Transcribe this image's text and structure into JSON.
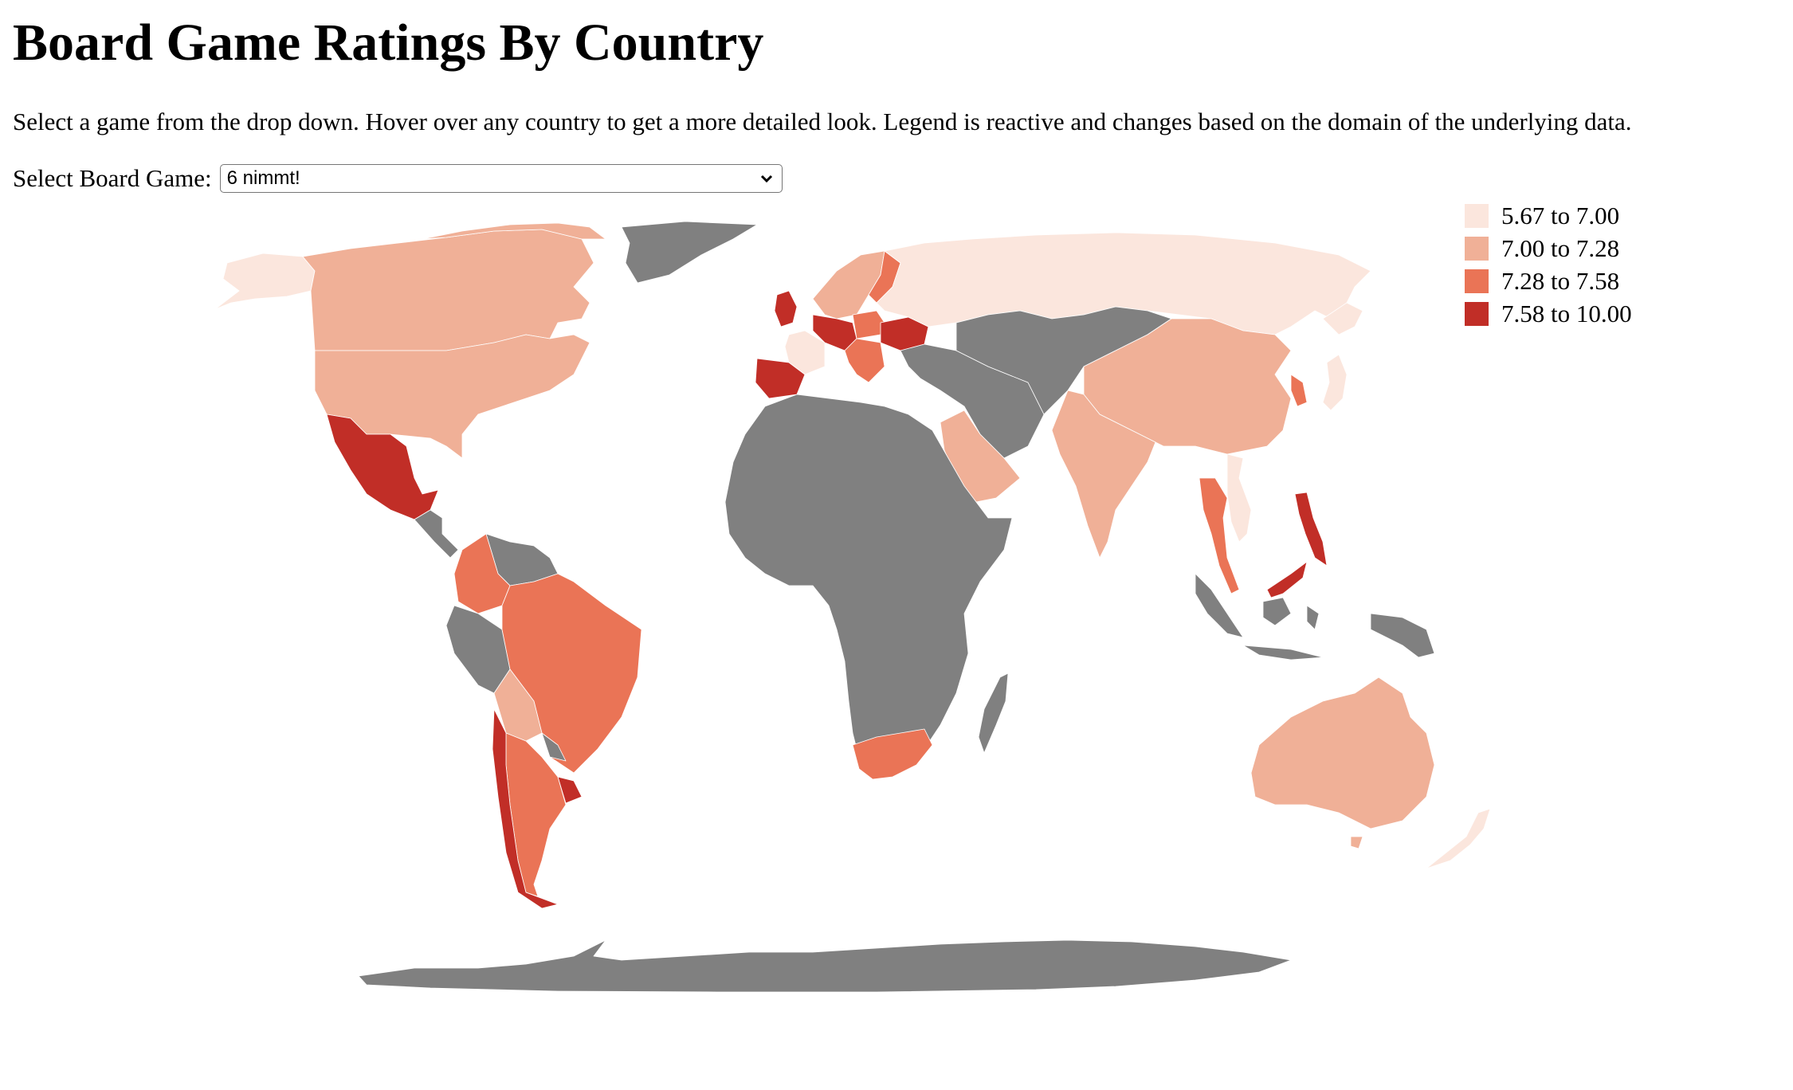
{
  "page": {
    "title": "Board Game Ratings By Country",
    "instructions": "Select a game from the drop down. Hover over any country to get a more detailed look. Legend is reactive and changes based on the domain of the underlying data.",
    "select_label": "Select Board Game:",
    "selected_game": "6 nimmt!"
  },
  "colors": {
    "no_data": "#808080",
    "bins": [
      "#fbe6dd",
      "#f0b097",
      "#ea7456",
      "#c12e27"
    ]
  },
  "legend": {
    "items": [
      {
        "label": "5.67 to 7.00",
        "color": "#fbe6dd"
      },
      {
        "label": "7.00 to 7.28",
        "color": "#f0b097"
      },
      {
        "label": "7.28 to 7.58",
        "color": "#ea7456"
      },
      {
        "label": "7.58 to 10.00",
        "color": "#c12e27"
      }
    ]
  },
  "map": {
    "projection": "equirectangular-like world view",
    "regions": [
      {
        "name": "Canada",
        "bin": 1
      },
      {
        "name": "United States",
        "bin": 1
      },
      {
        "name": "Alaska",
        "bin": 0
      },
      {
        "name": "Greenland",
        "bin": null
      },
      {
        "name": "Mexico",
        "bin": 3
      },
      {
        "name": "Central America",
        "bin": null
      },
      {
        "name": "Colombia",
        "bin": 2
      },
      {
        "name": "Venezuela",
        "bin": null
      },
      {
        "name": "Brazil",
        "bin": 2
      },
      {
        "name": "Peru",
        "bin": null
      },
      {
        "name": "Bolivia",
        "bin": 1
      },
      {
        "name": "Argentina",
        "bin": 2
      },
      {
        "name": "Chile",
        "bin": 3
      },
      {
        "name": "Uruguay",
        "bin": 3
      },
      {
        "name": "Paraguay",
        "bin": null
      },
      {
        "name": "Russia",
        "bin": 0
      },
      {
        "name": "Scandinavia",
        "bin": 1
      },
      {
        "name": "Finland",
        "bin": 2
      },
      {
        "name": "United Kingdom",
        "bin": 3
      },
      {
        "name": "France",
        "bin": 0
      },
      {
        "name": "Spain",
        "bin": 3
      },
      {
        "name": "Germany",
        "bin": 3
      },
      {
        "name": "Poland",
        "bin": 2
      },
      {
        "name": "Ukraine",
        "bin": 3
      },
      {
        "name": "Balkans",
        "bin": 2
      },
      {
        "name": "Middle East",
        "bin": null
      },
      {
        "name": "Saudi Arabia",
        "bin": 1
      },
      {
        "name": "Africa",
        "bin": null
      },
      {
        "name": "South Africa",
        "bin": 2
      },
      {
        "name": "Madagascar",
        "bin": null
      },
      {
        "name": "Central Asia",
        "bin": null
      },
      {
        "name": "China",
        "bin": 1
      },
      {
        "name": "India",
        "bin": 1
      },
      {
        "name": "Korea",
        "bin": 2
      },
      {
        "name": "Japan",
        "bin": 0
      },
      {
        "name": "Thailand",
        "bin": 2
      },
      {
        "name": "Vietnam",
        "bin": 0
      },
      {
        "name": "Malaysia",
        "bin": 3
      },
      {
        "name": "Philippines",
        "bin": 3
      },
      {
        "name": "Indonesia",
        "bin": null
      },
      {
        "name": "Australia",
        "bin": 1
      },
      {
        "name": "New Zealand",
        "bin": 0
      },
      {
        "name": "Antarctica",
        "bin": null
      }
    ]
  }
}
